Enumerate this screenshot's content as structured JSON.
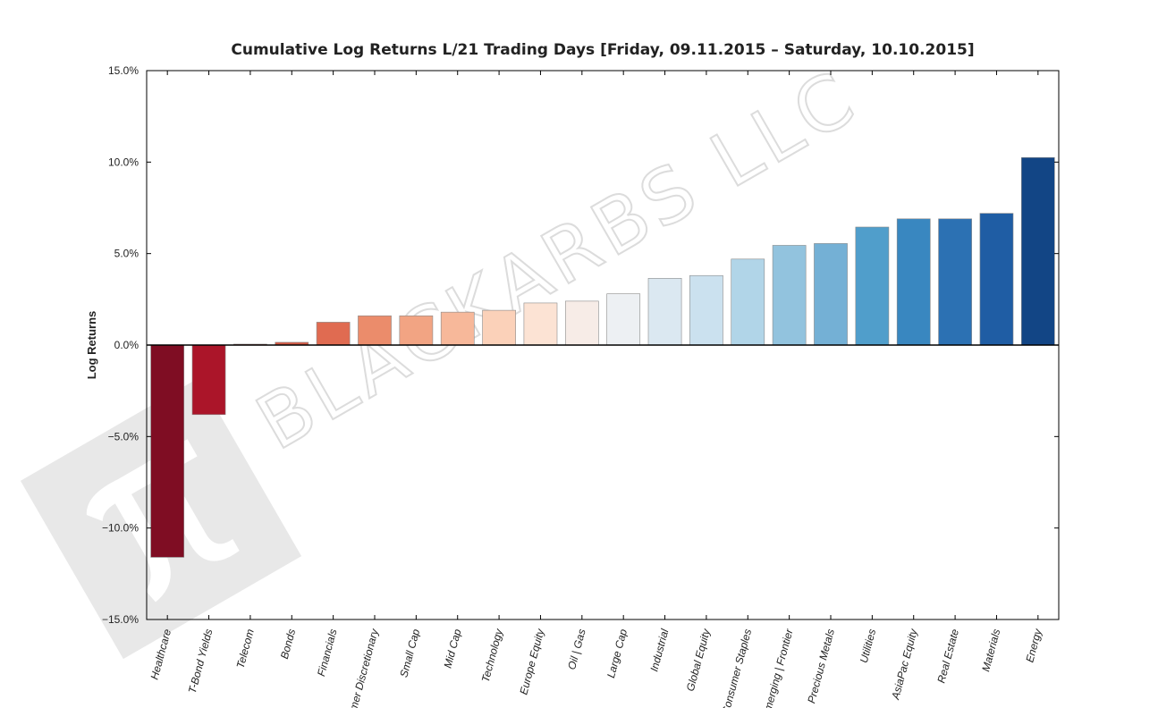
{
  "watermark": {
    "text": "BLACKARBS LLC"
  },
  "chart_data": {
    "type": "bar",
    "title": "Cumulative Log Returns L/21 Trading Days  [Friday, 09.11.2015 – Saturday, 10.10.2015]",
    "xlabel": "",
    "ylabel": "Log Returns",
    "ylim": [
      -15,
      15
    ],
    "yticks": [
      15,
      10,
      5,
      0,
      -5,
      -10,
      -15
    ],
    "ytick_labels": [
      "15.0%",
      "10.0%",
      "5.0%",
      "0.0%",
      "−5.0%",
      "−10.0%",
      "−15.0%"
    ],
    "grid": false,
    "categories": [
      "Healthcare",
      "T-Bond Yields",
      "Telecom",
      "Bonds",
      "Financials",
      "Consumer Discretionary",
      "Small Cap",
      "Mid Cap",
      "Technology",
      "Europe Equity",
      "Oil | Gas",
      "Large Cap",
      "Industrial",
      "Global Equity",
      "Consumer Staples",
      "Emerging | Frontier",
      "Precious Metals",
      "Utilities",
      "AsiaPac Equity",
      "Real Estate",
      "Materials",
      "Energy"
    ],
    "values": [
      -11.6,
      -3.8,
      0.05,
      0.15,
      1.25,
      1.6,
      1.6,
      1.8,
      1.9,
      2.3,
      2.4,
      2.8,
      3.65,
      3.8,
      4.7,
      5.45,
      5.55,
      6.45,
      6.9,
      6.9,
      7.2,
      10.25
    ],
    "colors": [
      "#7f0d23",
      "#ab1529",
      "#c23b37",
      "#d25a45",
      "#e06b51",
      "#eb8c6b",
      "#f2a483",
      "#f7b89a",
      "#fbd1b9",
      "#fce3d4",
      "#f7ece7",
      "#edf0f3",
      "#dbe8f1",
      "#cbe1ef",
      "#b1d5e8",
      "#92c3de",
      "#74b0d5",
      "#509ecb",
      "#3987c0",
      "#2c71b3",
      "#1f5da4",
      "#124585"
    ]
  }
}
